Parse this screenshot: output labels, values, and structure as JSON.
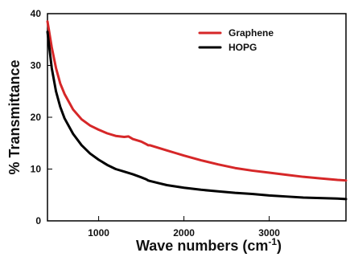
{
  "chart_data": {
    "type": "line",
    "title": "",
    "xlabel": "Wave numbers (cm",
    "xlabel_sup": "-1",
    "xlabel_close": ")",
    "ylabel": "% Transmittance",
    "xlim": [
      400,
      3900
    ],
    "ylim": [
      0,
      40
    ],
    "x_ticks": [
      1000,
      2000,
      3000
    ],
    "x_tick_labels": [
      "1000",
      "2000",
      "3000"
    ],
    "y_ticks": [
      0,
      10,
      20,
      30,
      40
    ],
    "y_tick_labels": [
      "0",
      "10",
      "20",
      "30",
      "40"
    ],
    "grid": false,
    "legend": "top-right",
    "series": [
      {
        "name": "Graphene",
        "color": "#d62728",
        "x": [
          400,
          450,
          500,
          550,
          600,
          700,
          800,
          900,
          1000,
          1100,
          1200,
          1300,
          1350,
          1400,
          1500,
          1560,
          1580,
          1600,
          1700,
          1800,
          1900,
          2000,
          2200,
          2400,
          2600,
          2800,
          3000,
          3200,
          3400,
          3600,
          3800,
          3900
        ],
        "values": [
          38.5,
          33.5,
          29.5,
          26.5,
          24.5,
          21.5,
          19.6,
          18.4,
          17.6,
          16.9,
          16.4,
          16.2,
          16.3,
          15.8,
          15.3,
          14.8,
          14.6,
          14.6,
          14.1,
          13.6,
          13.1,
          12.6,
          11.7,
          10.9,
          10.2,
          9.7,
          9.3,
          8.9,
          8.5,
          8.2,
          7.9,
          7.8
        ]
      },
      {
        "name": "HOPG",
        "color": "#000000",
        "x": [
          400,
          450,
          500,
          550,
          600,
          700,
          800,
          900,
          1000,
          1100,
          1200,
          1300,
          1400,
          1500,
          1560,
          1580,
          1600,
          1700,
          1800,
          2000,
          2200,
          2400,
          2600,
          2800,
          3000,
          3200,
          3400,
          3600,
          3800,
          3900
        ],
        "values": [
          36.5,
          29.5,
          25.0,
          22.0,
          19.8,
          16.8,
          14.6,
          13.0,
          11.8,
          10.8,
          10.0,
          9.5,
          9.0,
          8.4,
          8.0,
          7.8,
          7.7,
          7.3,
          6.9,
          6.4,
          6.0,
          5.7,
          5.4,
          5.2,
          4.9,
          4.7,
          4.5,
          4.4,
          4.3,
          4.2
        ]
      }
    ]
  }
}
